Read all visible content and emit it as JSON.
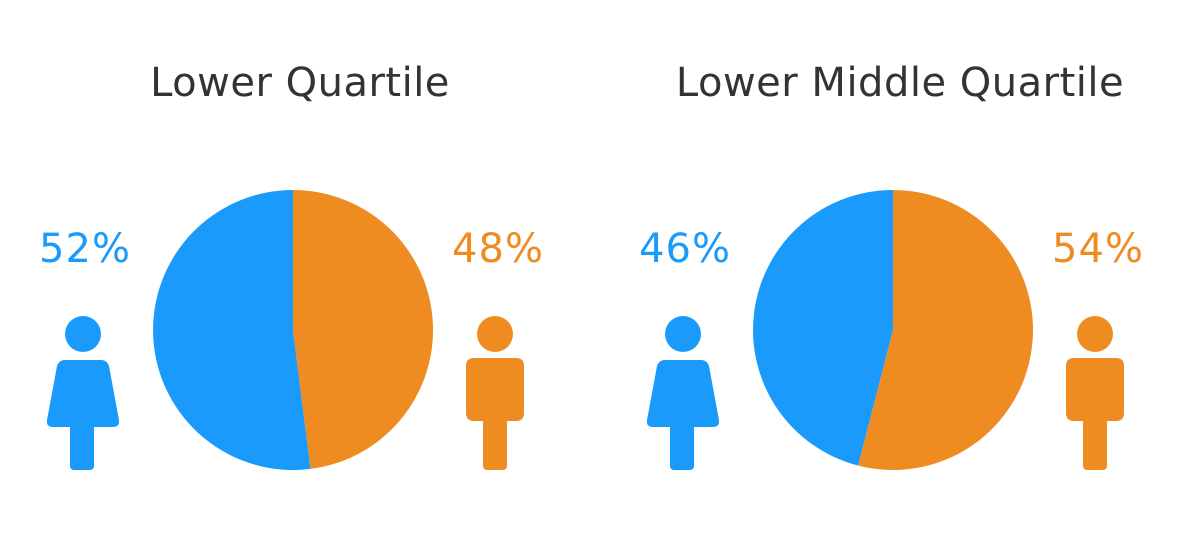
{
  "colors": {
    "female": "#1a9bfc",
    "male": "#ee8c21",
    "title": "#333333"
  },
  "icons": {
    "female": "female-person-icon",
    "male": "male-person-icon"
  },
  "chart_data": [
    {
      "type": "pie",
      "title": "Lower Quartile",
      "slices": [
        {
          "name": "female",
          "value": 52,
          "label": "52%",
          "color": "#1a9bfc"
        },
        {
          "name": "male",
          "value": 48,
          "label": "48%",
          "color": "#ee8c21"
        }
      ]
    },
    {
      "type": "pie",
      "title": "Lower Middle Quartile",
      "slices": [
        {
          "name": "female",
          "value": 46,
          "label": "46%",
          "color": "#1a9bfc"
        },
        {
          "name": "male",
          "value": 54,
          "label": "54%",
          "color": "#ee8c21"
        }
      ]
    }
  ]
}
